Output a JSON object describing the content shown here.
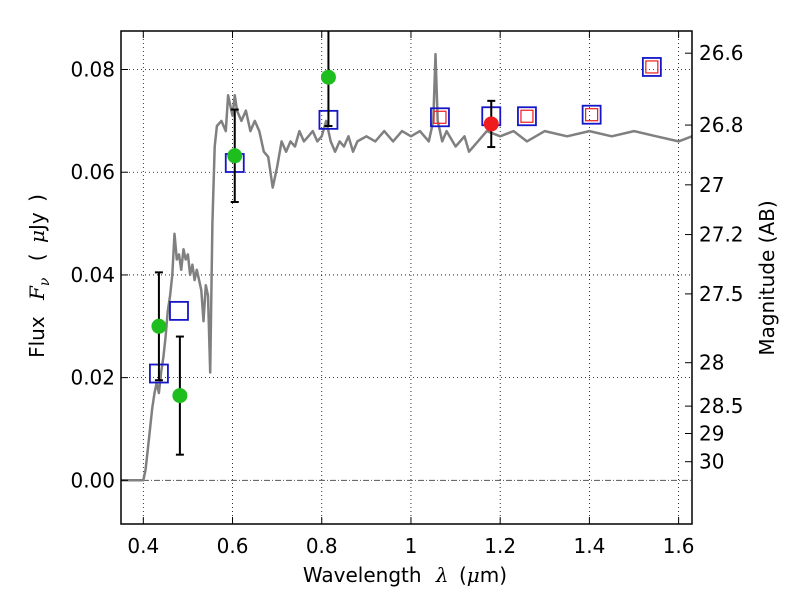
{
  "chart_data": {
    "type": "scatter",
    "xlabel": {
      "text": "Wavelength",
      "symbol": "λ",
      "unit_open": "(",
      "unit_mu": "μ",
      "unit_rest": "m)"
    },
    "ylabel": {
      "text": "Flux",
      "symbol": "F",
      "subscript": "ν",
      "unit_open": "(",
      "unit_mu": "μ",
      "unit_rest": "Jy",
      "unit_close": ")"
    },
    "y2label": "Magnitude (AB)",
    "xlim": [
      0.35,
      1.63
    ],
    "ylim": [
      -0.0085,
      0.0875
    ],
    "grid": true,
    "x_ticks": [
      {
        "value": 0.4,
        "label": "0.4"
      },
      {
        "value": 0.6,
        "label": "0.6"
      },
      {
        "value": 0.8,
        "label": "0.8"
      },
      {
        "value": 1.0,
        "label": "1"
      },
      {
        "value": 1.2,
        "label": "1.2"
      },
      {
        "value": 1.4,
        "label": "1.4"
      },
      {
        "value": 1.6,
        "label": "1.6"
      }
    ],
    "y_ticks": [
      {
        "value": 0.0,
        "label": "0.00"
      },
      {
        "value": 0.02,
        "label": "0.02"
      },
      {
        "value": 0.04,
        "label": "0.04"
      },
      {
        "value": 0.06,
        "label": "0.06"
      },
      {
        "value": 0.08,
        "label": "0.08"
      }
    ],
    "magnitude_ticks": [
      {
        "value": 26.6,
        "label": "26.6"
      },
      {
        "value": 26.8,
        "label": "26.8"
      },
      {
        "value": 27.0,
        "label": "27"
      },
      {
        "value": 27.2,
        "label": "27.2"
      },
      {
        "value": 27.5,
        "label": "27.5"
      },
      {
        "value": 28.0,
        "label": "28"
      },
      {
        "value": 28.5,
        "label": "28.5"
      },
      {
        "value": 29.0,
        "label": "29"
      },
      {
        "value": 30.0,
        "label": "30"
      }
    ],
    "model_sed": {
      "name": "model spectrum",
      "color": "#808080",
      "points": [
        [
          0.35,
          0.0
        ],
        [
          0.4,
          0.0
        ],
        [
          0.405,
          0.002
        ],
        [
          0.41,
          0.006
        ],
        [
          0.415,
          0.01
        ],
        [
          0.42,
          0.014
        ],
        [
          0.425,
          0.017
        ],
        [
          0.43,
          0.019
        ],
        [
          0.435,
          0.017
        ],
        [
          0.44,
          0.021
        ],
        [
          0.445,
          0.024
        ],
        [
          0.45,
          0.028
        ],
        [
          0.455,
          0.033
        ],
        [
          0.46,
          0.036
        ],
        [
          0.465,
          0.04
        ],
        [
          0.47,
          0.048
        ],
        [
          0.475,
          0.043
        ],
        [
          0.48,
          0.044
        ],
        [
          0.485,
          0.041
        ],
        [
          0.49,
          0.045
        ],
        [
          0.495,
          0.043
        ],
        [
          0.5,
          0.044
        ],
        [
          0.505,
          0.04
        ],
        [
          0.51,
          0.042
        ],
        [
          0.515,
          0.039
        ],
        [
          0.52,
          0.041
        ],
        [
          0.525,
          0.039
        ],
        [
          0.53,
          0.037
        ],
        [
          0.535,
          0.031
        ],
        [
          0.54,
          0.038
        ],
        [
          0.545,
          0.036
        ],
        [
          0.55,
          0.021
        ],
        [
          0.552,
          0.033
        ],
        [
          0.555,
          0.05
        ],
        [
          0.56,
          0.065
        ],
        [
          0.565,
          0.069
        ],
        [
          0.575,
          0.07
        ],
        [
          0.585,
          0.068
        ],
        [
          0.59,
          0.075
        ],
        [
          0.6,
          0.071
        ],
        [
          0.605,
          0.075
        ],
        [
          0.61,
          0.072
        ],
        [
          0.62,
          0.07
        ],
        [
          0.63,
          0.072
        ],
        [
          0.64,
          0.068
        ],
        [
          0.65,
          0.07
        ],
        [
          0.66,
          0.068
        ],
        [
          0.67,
          0.064
        ],
        [
          0.68,
          0.063
        ],
        [
          0.69,
          0.057
        ],
        [
          0.7,
          0.061
        ],
        [
          0.71,
          0.066
        ],
        [
          0.72,
          0.064
        ],
        [
          0.73,
          0.066
        ],
        [
          0.74,
          0.065
        ],
        [
          0.75,
          0.068
        ],
        [
          0.76,
          0.066
        ],
        [
          0.77,
          0.067
        ],
        [
          0.78,
          0.068
        ],
        [
          0.79,
          0.066
        ],
        [
          0.8,
          0.067
        ],
        [
          0.81,
          0.07
        ],
        [
          0.82,
          0.066
        ],
        [
          0.83,
          0.064
        ],
        [
          0.84,
          0.066
        ],
        [
          0.85,
          0.065
        ],
        [
          0.86,
          0.067
        ],
        [
          0.87,
          0.064
        ],
        [
          0.88,
          0.066
        ],
        [
          0.9,
          0.067
        ],
        [
          0.92,
          0.066
        ],
        [
          0.94,
          0.068
        ],
        [
          0.96,
          0.066
        ],
        [
          0.98,
          0.068
        ],
        [
          1.0,
          0.067
        ],
        [
          1.02,
          0.068
        ],
        [
          1.04,
          0.066
        ],
        [
          1.05,
          0.07
        ],
        [
          1.055,
          0.083
        ],
        [
          1.06,
          0.07
        ],
        [
          1.07,
          0.066
        ],
        [
          1.08,
          0.068
        ],
        [
          1.1,
          0.065
        ],
        [
          1.12,
          0.067
        ],
        [
          1.13,
          0.064
        ],
        [
          1.15,
          0.066
        ],
        [
          1.17,
          0.068
        ],
        [
          1.2,
          0.067
        ],
        [
          1.23,
          0.068
        ],
        [
          1.26,
          0.066
        ],
        [
          1.3,
          0.068
        ],
        [
          1.35,
          0.067
        ],
        [
          1.4,
          0.068
        ],
        [
          1.45,
          0.067
        ],
        [
          1.5,
          0.068
        ],
        [
          1.55,
          0.067
        ],
        [
          1.6,
          0.066
        ],
        [
          1.63,
          0.067
        ]
      ]
    },
    "series": [
      {
        "name": "observed (green)",
        "marker": "circle",
        "color": "#1ebe1e",
        "points": [
          {
            "x": 0.435,
            "y": 0.03,
            "err": 0.0105
          },
          {
            "x": 0.482,
            "y": 0.0165,
            "err": 0.0115
          },
          {
            "x": 0.605,
            "y": 0.0632,
            "err": 0.009
          },
          {
            "x": 0.815,
            "y": 0.0785,
            "err": 0.0095
          }
        ]
      },
      {
        "name": "observed (red)",
        "marker": "circle",
        "color": "#ee1c1c",
        "points": [
          {
            "x": 1.18,
            "y": 0.0694,
            "err": 0.0045
          }
        ]
      },
      {
        "name": "model photometry",
        "marker": "square",
        "color": "#1616c8",
        "points": [
          {
            "x": 0.435,
            "y": 0.0208
          },
          {
            "x": 0.48,
            "y": 0.033
          },
          {
            "x": 0.605,
            "y": 0.0618
          },
          {
            "x": 0.815,
            "y": 0.0702
          },
          {
            "x": 1.065,
            "y": 0.0707
          },
          {
            "x": 1.18,
            "y": 0.0709
          },
          {
            "x": 1.26,
            "y": 0.0709
          },
          {
            "x": 1.405,
            "y": 0.0712
          },
          {
            "x": 1.54,
            "y": 0.0805
          }
        ]
      },
      {
        "name": "photometry (red squares)",
        "marker": "square",
        "color": "#ee1c1c",
        "points": [
          {
            "x": 1.065,
            "y": 0.0707
          },
          {
            "x": 1.26,
            "y": 0.0709
          },
          {
            "x": 1.405,
            "y": 0.0712
          },
          {
            "x": 1.54,
            "y": 0.0805
          }
        ]
      }
    ]
  }
}
